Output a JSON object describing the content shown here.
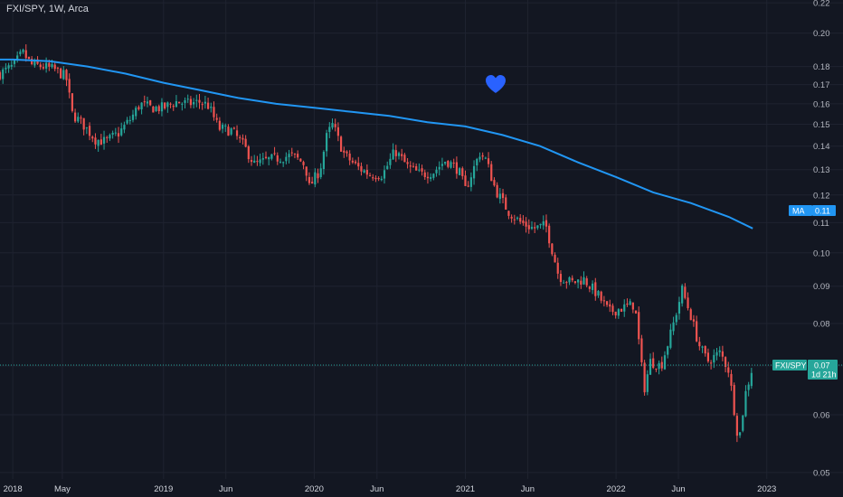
{
  "header": {
    "symbol_label": "FXI/SPY, 1W, Arca"
  },
  "colors": {
    "background": "#131722",
    "grid": "#1f2330",
    "up": "#26a69a",
    "down": "#ef5350",
    "ma_line": "#2196f3",
    "heart": "#2962ff",
    "axis_text": "#b2b5be"
  },
  "overlay": {
    "heart_icon": "heart-icon"
  },
  "price_tag": {
    "label": "FXI/SPY",
    "value": "0.07",
    "countdown": "1d 21h"
  },
  "ma_tag": {
    "label": "MA",
    "value": "0.11"
  },
  "chart_data": {
    "type": "candlestick",
    "scale": "log",
    "ylim": [
      0.049,
      0.222
    ],
    "grid": true,
    "y_ticks": [
      0.22,
      0.2,
      0.18,
      0.17,
      0.16,
      0.15,
      0.14,
      0.13,
      0.12,
      0.11,
      0.1,
      0.09,
      0.08,
      0.07,
      0.06,
      0.05
    ],
    "y_tick_labels": [
      "0.22",
      "0.20",
      "0.18",
      "0.17",
      "0.16",
      "0.15",
      "0.14",
      "0.13",
      "0.12",
      "0.11",
      "0.10",
      "0.09",
      "0.08",
      "0.07",
      "0.06",
      "0.05"
    ],
    "x_ticks": [
      {
        "label": "2018",
        "date": "2018-01-01"
      },
      {
        "label": "May",
        "date": "2018-05-01"
      },
      {
        "label": "2019",
        "date": "2019-01-01"
      },
      {
        "label": "Jun",
        "date": "2019-06-01"
      },
      {
        "label": "2020",
        "date": "2020-01-01"
      },
      {
        "label": "Jun",
        "date": "2020-06-01"
      },
      {
        "label": "2021",
        "date": "2021-01-01"
      },
      {
        "label": "Jun",
        "date": "2021-06-01"
      },
      {
        "label": "2022",
        "date": "2022-01-01"
      },
      {
        "label": "Jun",
        "date": "2022-06-01"
      },
      {
        "label": "2023",
        "date": "2023-01-01"
      }
    ],
    "x_range": [
      "2017-12-01",
      "2023-02-10"
    ],
    "last_price": 0.07,
    "ma_value": 0.11,
    "close_series": [
      [
        "2017-12-01",
        0.176
      ],
      [
        "2018-01-01",
        0.18
      ],
      [
        "2018-01-25",
        0.188
      ],
      [
        "2018-02-15",
        0.181
      ],
      [
        "2018-03-15",
        0.18
      ],
      [
        "2018-04-15",
        0.178
      ],
      [
        "2018-05-10",
        0.174
      ],
      [
        "2018-05-25",
        0.155
      ],
      [
        "2018-06-20",
        0.15
      ],
      [
        "2018-07-20",
        0.143
      ],
      [
        "2018-08-15",
        0.142
      ],
      [
        "2018-09-15",
        0.146
      ],
      [
        "2018-10-15",
        0.153
      ],
      [
        "2018-11-05",
        0.16
      ],
      [
        "2018-12-01",
        0.158
      ],
      [
        "2019-01-01",
        0.158
      ],
      [
        "2019-02-01",
        0.161
      ],
      [
        "2019-03-01",
        0.16
      ],
      [
        "2019-04-01",
        0.161
      ],
      [
        "2019-04-20",
        0.159
      ],
      [
        "2019-05-15",
        0.148
      ],
      [
        "2019-06-15",
        0.147
      ],
      [
        "2019-07-15",
        0.14
      ],
      [
        "2019-08-10",
        0.132
      ],
      [
        "2019-09-10",
        0.134
      ],
      [
        "2019-10-10",
        0.135
      ],
      [
        "2019-11-10",
        0.136
      ],
      [
        "2019-12-10",
        0.132
      ],
      [
        "2019-12-20",
        0.123
      ],
      [
        "2020-01-15",
        0.13
      ],
      [
        "2020-02-01",
        0.145
      ],
      [
        "2020-02-15",
        0.15
      ],
      [
        "2020-03-01",
        0.142
      ],
      [
        "2020-03-15",
        0.136
      ],
      [
        "2020-04-15",
        0.131
      ],
      [
        "2020-05-15",
        0.128
      ],
      [
        "2020-06-15",
        0.128
      ],
      [
        "2020-07-15",
        0.138
      ],
      [
        "2020-08-15",
        0.131
      ],
      [
        "2020-09-15",
        0.128
      ],
      [
        "2020-10-15",
        0.129
      ],
      [
        "2020-11-15",
        0.134
      ],
      [
        "2020-12-15",
        0.13
      ],
      [
        "2021-01-01",
        0.122
      ],
      [
        "2021-01-20",
        0.13
      ],
      [
        "2021-02-05",
        0.137
      ],
      [
        "2021-02-20",
        0.134
      ],
      [
        "2021-03-15",
        0.122
      ],
      [
        "2021-04-15",
        0.114
      ],
      [
        "2021-05-15",
        0.11
      ],
      [
        "2021-06-15",
        0.108
      ],
      [
        "2021-07-15",
        0.109
      ],
      [
        "2021-08-01",
        0.1
      ],
      [
        "2021-08-15",
        0.093
      ],
      [
        "2021-09-15",
        0.091
      ],
      [
        "2021-10-15",
        0.092
      ],
      [
        "2021-11-15",
        0.088
      ],
      [
        "2021-12-15",
        0.083
      ],
      [
        "2022-01-15",
        0.084
      ],
      [
        "2022-02-15",
        0.085
      ],
      [
        "2022-03-10",
        0.065
      ],
      [
        "2022-03-25",
        0.071
      ],
      [
        "2022-04-20",
        0.07
      ],
      [
        "2022-05-15",
        0.078
      ],
      [
        "2022-06-10",
        0.089
      ],
      [
        "2022-07-01",
        0.082
      ],
      [
        "2022-07-20",
        0.075
      ],
      [
        "2022-08-10",
        0.071
      ],
      [
        "2022-09-10",
        0.073
      ],
      [
        "2022-10-01",
        0.069
      ],
      [
        "2022-10-25",
        0.055
      ],
      [
        "2022-11-10",
        0.064
      ],
      [
        "2022-11-25",
        0.069
      ]
    ],
    "ma_series": [
      [
        "2017-12-01",
        0.184
      ],
      [
        "2018-01-01",
        0.184
      ],
      [
        "2018-04-01",
        0.183
      ],
      [
        "2018-07-01",
        0.18
      ],
      [
        "2018-10-01",
        0.176
      ],
      [
        "2019-01-01",
        0.171
      ],
      [
        "2019-04-01",
        0.167
      ],
      [
        "2019-07-01",
        0.163
      ],
      [
        "2019-10-01",
        0.16
      ],
      [
        "2020-01-01",
        0.158
      ],
      [
        "2020-04-01",
        0.156
      ],
      [
        "2020-07-01",
        0.154
      ],
      [
        "2020-10-01",
        0.151
      ],
      [
        "2021-01-01",
        0.149
      ],
      [
        "2021-04-01",
        0.145
      ],
      [
        "2021-07-01",
        0.14
      ],
      [
        "2021-10-01",
        0.133
      ],
      [
        "2022-01-01",
        0.127
      ],
      [
        "2022-04-01",
        0.121
      ],
      [
        "2022-07-01",
        0.117
      ],
      [
        "2022-10-01",
        0.112
      ],
      [
        "2022-11-28",
        0.108
      ]
    ]
  }
}
